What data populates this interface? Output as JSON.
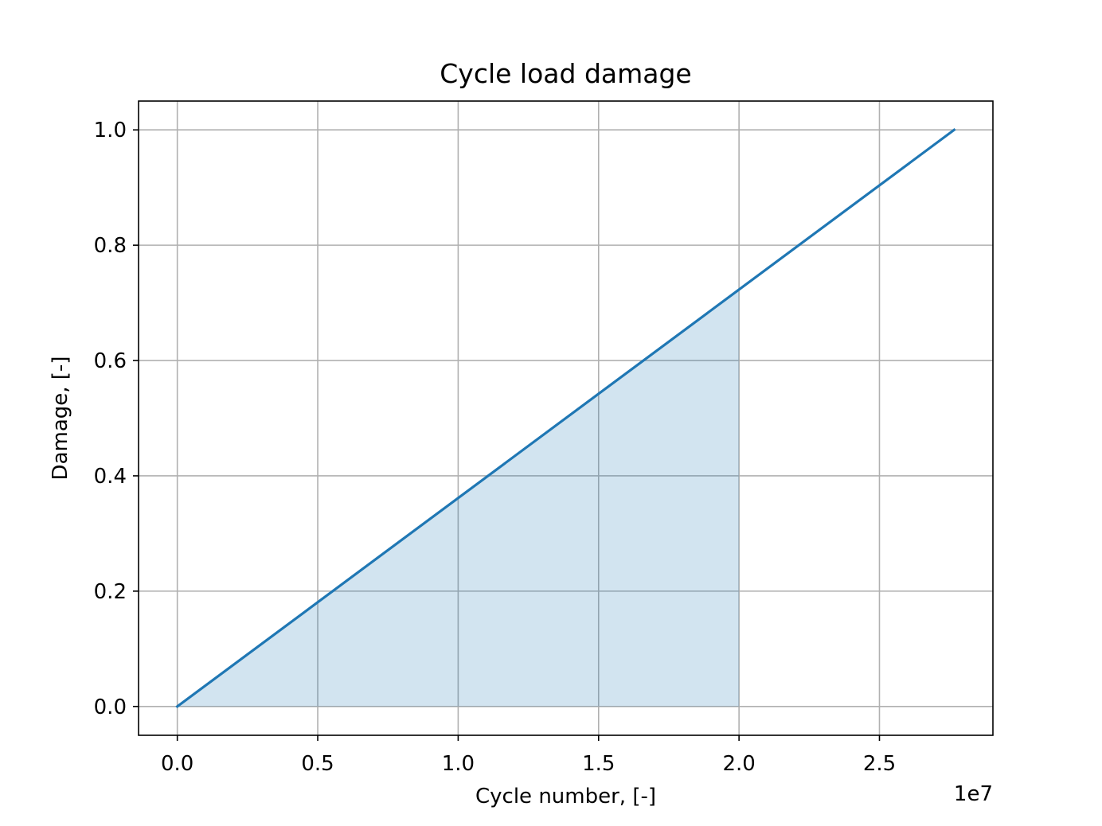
{
  "chart_data": {
    "type": "line",
    "title": "Cycle load damage",
    "xlabel": "Cycle number, [-]",
    "ylabel": "Damage, [-]",
    "x_offset_label": "1e7",
    "xlim": [
      -0.138,
      2.904
    ],
    "ylim": [
      -0.05,
      1.05
    ],
    "x_ticks": [
      0.0,
      0.5,
      1.0,
      1.5,
      2.0,
      2.5
    ],
    "x_tick_labels": [
      "0.0",
      "0.5",
      "1.0",
      "1.5",
      "2.0",
      "2.5"
    ],
    "y_ticks": [
      0.0,
      0.2,
      0.4,
      0.6,
      0.8,
      1.0
    ],
    "y_tick_labels": [
      "0.0",
      "0.2",
      "0.4",
      "0.6",
      "0.8",
      "1.0"
    ],
    "grid": true,
    "series": [
      {
        "x": [
          0.0,
          2.766
        ],
        "y": [
          0.0,
          1.0
        ],
        "color": "#1f77b4"
      }
    ],
    "filled_area": {
      "x_from": 0.0,
      "x_to": 2.0,
      "color": "#1f77b4",
      "opacity": 0.2
    }
  }
}
